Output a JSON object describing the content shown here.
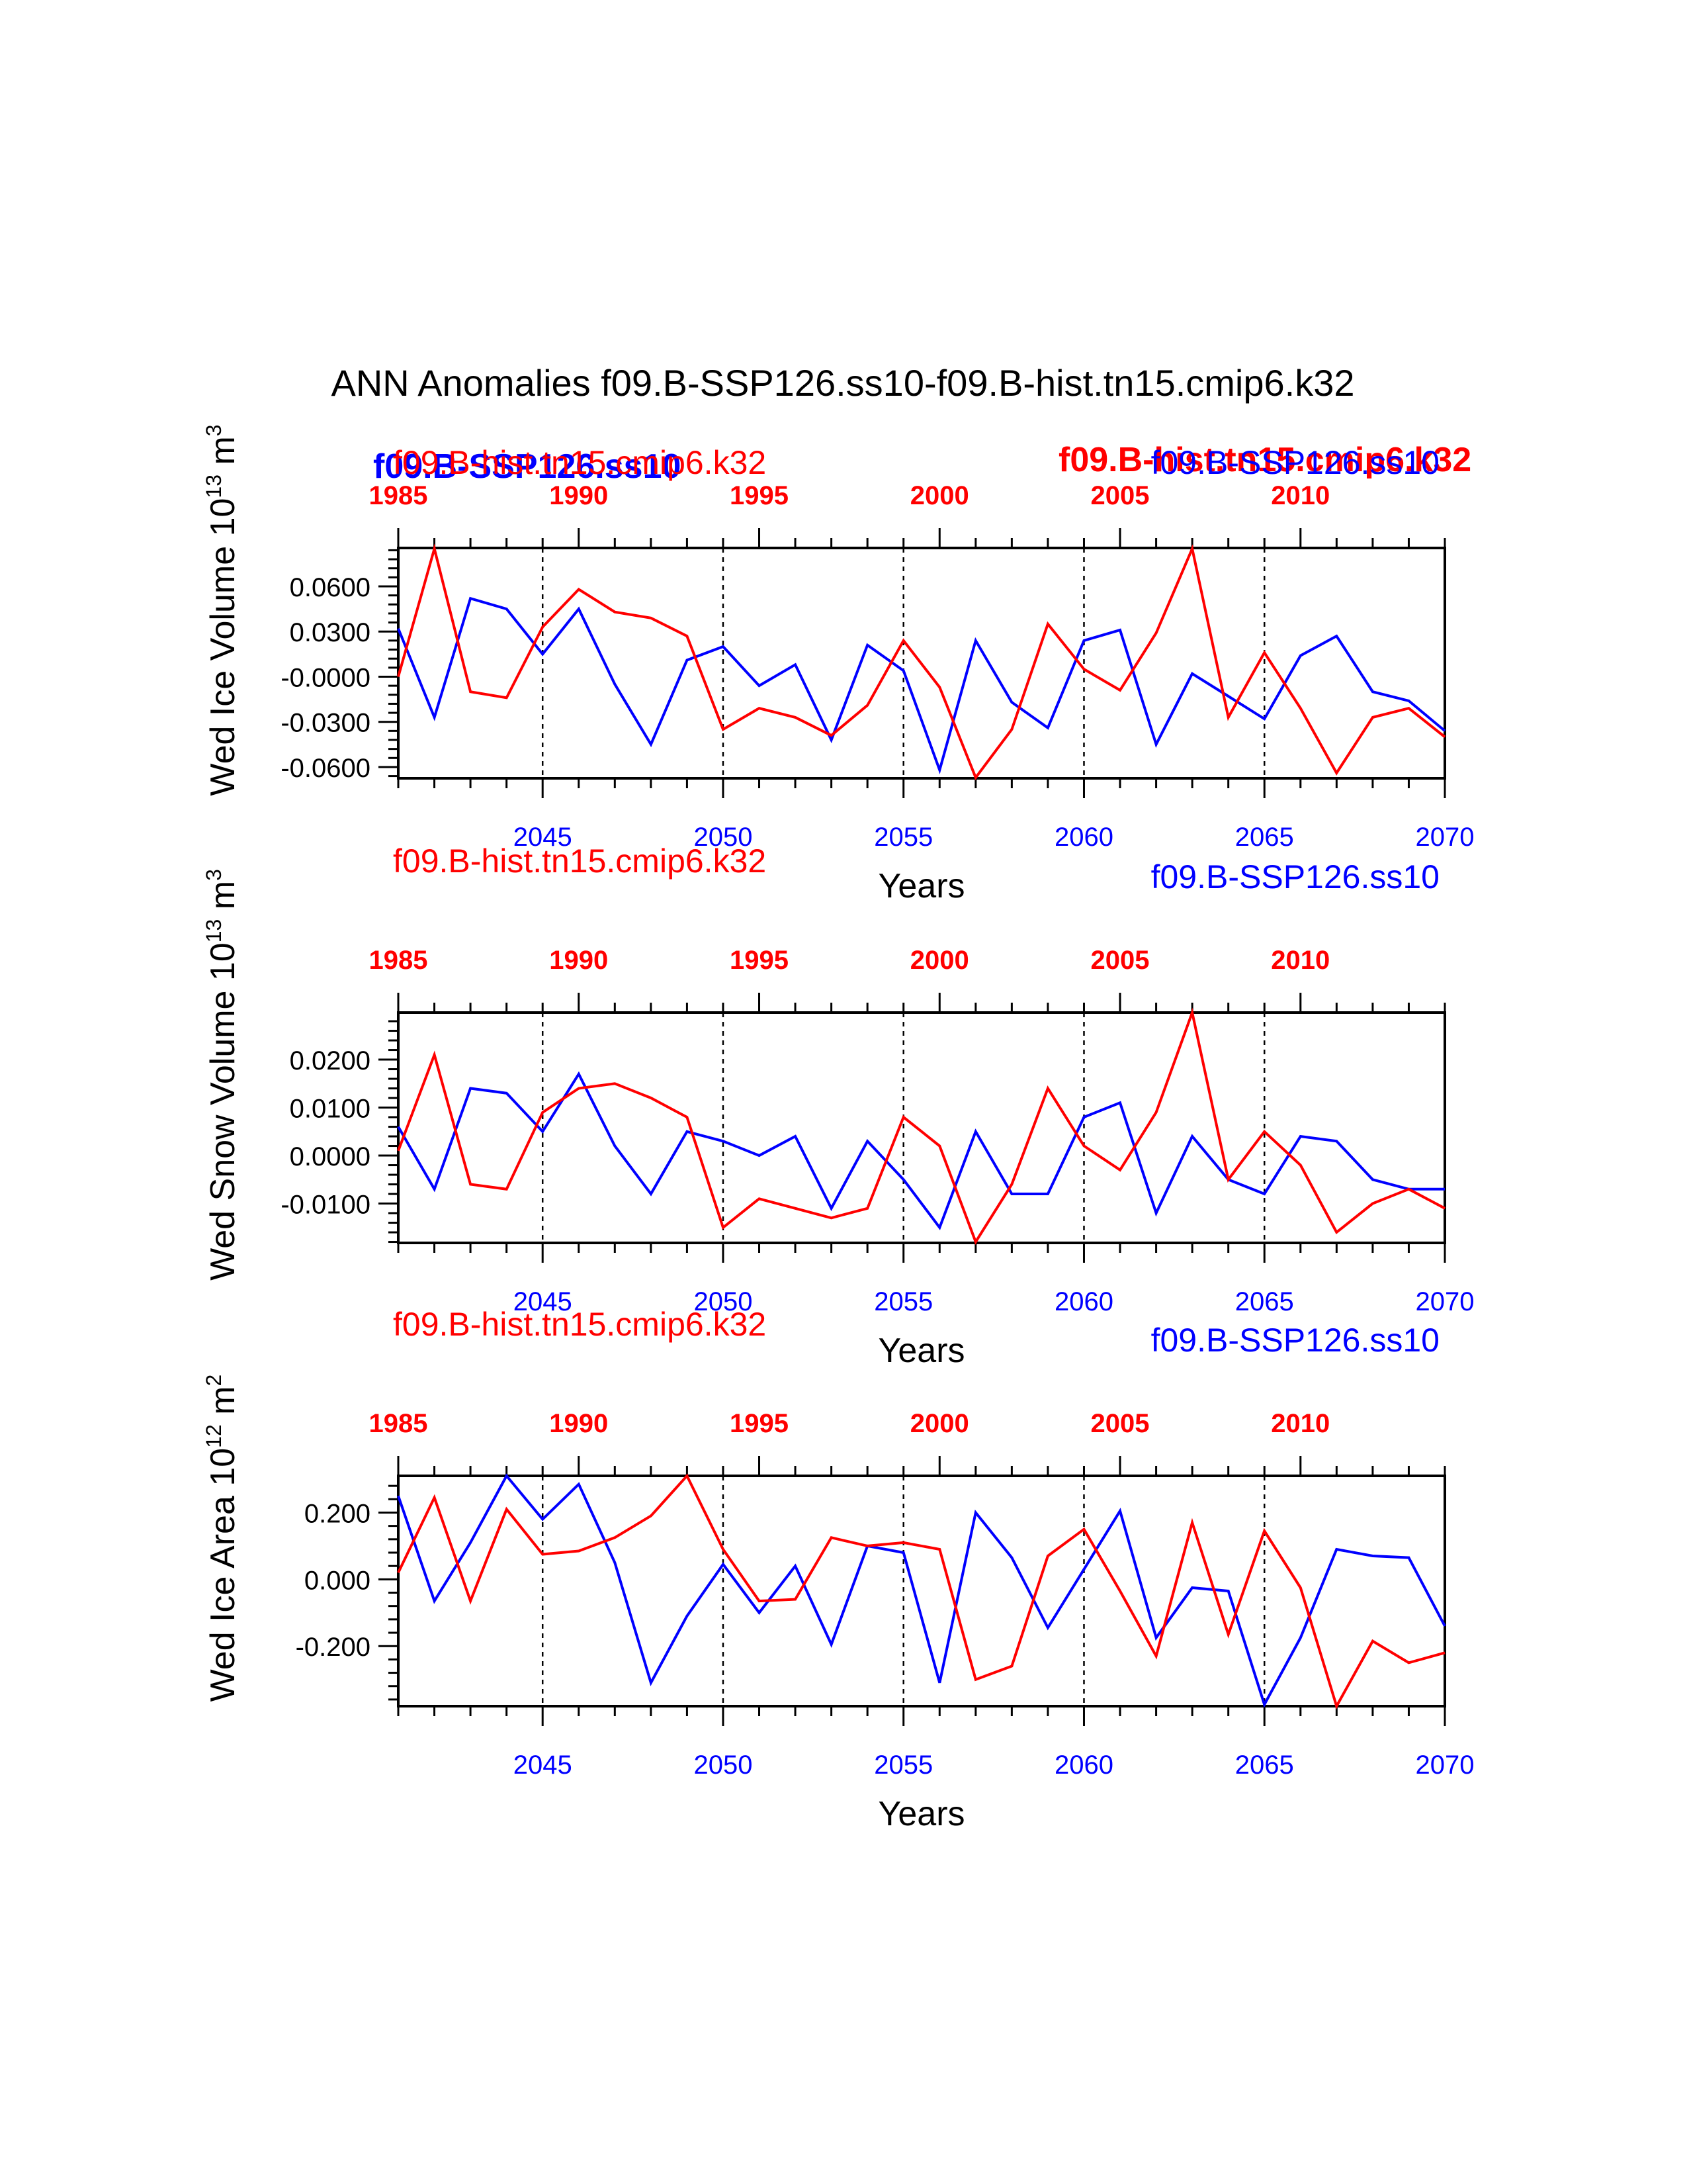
{
  "main_title": "ANN Anomalies f09.B-SSP126.ss10-f09.B-hist.tn15.cmip6.k32",
  "colors": {
    "ssp": "#0000ff",
    "hist": "#ff0000",
    "axis": "#000000"
  },
  "overlap_labels": {
    "ssp_bold_left": "f09.B-SSP126.ss10",
    "hist_bold_right": "f09.B-hist.tn15.cmip6.k32"
  },
  "chart_data": [
    {
      "type": "line",
      "ylabel_main": "Wed Ice Volume 10",
      "ylabel_exp": "13",
      "ylabel_unit": "m",
      "ylabel_unit_exp": "3",
      "xlabel": "Years",
      "hist_label": "f09.B-hist.tn15.cmip6.k32",
      "ssp_label": "f09.B-SSP126.ss10",
      "ylim": [
        -0.0675,
        0.0855
      ],
      "yticks": [
        -0.06,
        -0.03,
        0.0,
        0.03,
        0.06
      ],
      "ytick_labels": [
        "-0.0600",
        "-0.0300",
        "-0.0000",
        "0.0300",
        "0.0600"
      ],
      "ssp_xlim": [
        2041,
        2070
      ],
      "ssp_xticks": [
        2045,
        2050,
        2055,
        2060,
        2065,
        2070
      ],
      "hist_xlim": [
        1985,
        2014
      ],
      "hist_xticks": [
        1985,
        1990,
        1995,
        2000,
        2005,
        2010
      ],
      "gridlines_x": [
        2045,
        2050,
        2055,
        2060,
        2065
      ],
      "series": [
        {
          "name": "f09.B-SSP126.ss10",
          "x_start": 2041,
          "values": [
            0.032,
            -0.027,
            0.052,
            0.045,
            0.015,
            0.045,
            -0.005,
            -0.045,
            0.011,
            0.02,
            -0.006,
            0.008,
            -0.042,
            0.021,
            0.004,
            -0.062,
            0.024,
            -0.017,
            -0.034,
            0.024,
            0.031,
            -0.045,
            0.002,
            -0.013,
            -0.028,
            0.014,
            0.027,
            -0.01,
            -0.016,
            -0.036
          ]
        },
        {
          "name": "f09.B-hist.tn15.cmip6.k32",
          "x_start": 1985,
          "values": [
            0.0,
            0.085,
            -0.01,
            -0.014,
            0.033,
            0.058,
            0.043,
            0.039,
            0.027,
            -0.035,
            -0.021,
            -0.027,
            -0.039,
            -0.019,
            0.024,
            -0.007,
            -0.067,
            -0.035,
            0.035,
            0.005,
            -0.009,
            0.029,
            0.085,
            -0.027,
            0.016,
            -0.021,
            -0.064,
            -0.027,
            -0.021,
            -0.04
          ]
        }
      ]
    },
    {
      "type": "line",
      "ylabel_main": "Wed Snow Volume 10",
      "ylabel_exp": "13",
      "ylabel_unit": "m",
      "ylabel_unit_exp": "3",
      "xlabel": "Years",
      "hist_label": "f09.B-hist.tn15.cmip6.k32",
      "ssp_label": "f09.B-SSP126.ss10",
      "ylim": [
        -0.0182,
        0.0298
      ],
      "yticks": [
        -0.01,
        0.0,
        0.01,
        0.02
      ],
      "ytick_labels": [
        "-0.0100",
        "0.0000",
        "0.0100",
        "0.0200"
      ],
      "ssp_xlim": [
        2041,
        2070
      ],
      "ssp_xticks": [
        2045,
        2050,
        2055,
        2060,
        2065,
        2070
      ],
      "hist_xlim": [
        1985,
        2014
      ],
      "hist_xticks": [
        1985,
        1990,
        1995,
        2000,
        2005,
        2010
      ],
      "gridlines_x": [
        2045,
        2050,
        2055,
        2060,
        2065
      ],
      "series": [
        {
          "name": "f09.B-SSP126.ss10",
          "x_start": 2041,
          "values": [
            0.006,
            -0.007,
            0.014,
            0.013,
            0.005,
            0.017,
            0.002,
            -0.008,
            0.005,
            0.003,
            0.0,
            0.004,
            -0.011,
            0.003,
            -0.005,
            -0.015,
            0.005,
            -0.008,
            -0.008,
            0.008,
            0.011,
            -0.012,
            0.004,
            -0.005,
            -0.008,
            0.004,
            0.003,
            -0.005,
            -0.007,
            -0.007
          ]
        },
        {
          "name": "f09.B-hist.tn15.cmip6.k32",
          "x_start": 1985,
          "values": [
            0.001,
            0.021,
            -0.006,
            -0.007,
            0.009,
            0.014,
            0.015,
            0.012,
            0.008,
            -0.015,
            -0.009,
            -0.011,
            -0.013,
            -0.011,
            0.008,
            0.002,
            -0.018,
            -0.006,
            0.014,
            0.002,
            -0.003,
            0.009,
            0.0298,
            -0.005,
            0.005,
            -0.002,
            -0.016,
            -0.01,
            -0.007,
            -0.011
          ]
        }
      ]
    },
    {
      "type": "line",
      "ylabel_main": "Wed Ice Area 10",
      "ylabel_exp": "12",
      "ylabel_unit": "m",
      "ylabel_unit_exp": "2",
      "xlabel": "Years",
      "hist_label": "f09.B-hist.tn15.cmip6.k32",
      "ssp_label": "f09.B-SSP126.ss10",
      "ylim": [
        -0.38,
        0.31
      ],
      "yticks": [
        -0.2,
        0.0,
        0.2
      ],
      "ytick_labels": [
        "-0.200",
        "0.000",
        "0.200"
      ],
      "ssp_xlim": [
        2041,
        2070
      ],
      "ssp_xticks": [
        2045,
        2050,
        2055,
        2060,
        2065,
        2070
      ],
      "hist_xlim": [
        1985,
        2014
      ],
      "hist_xticks": [
        1985,
        1990,
        1995,
        2000,
        2005,
        2010
      ],
      "gridlines_x": [
        2045,
        2050,
        2055,
        2060,
        2065
      ],
      "series": [
        {
          "name": "f09.B-SSP126.ss10",
          "x_start": 2041,
          "values": [
            0.25,
            -0.065,
            0.11,
            0.31,
            0.18,
            0.285,
            0.05,
            -0.31,
            -0.11,
            0.045,
            -0.1,
            0.04,
            -0.195,
            0.1,
            0.08,
            -0.31,
            0.2,
            0.065,
            -0.145,
            0.03,
            0.205,
            -0.175,
            -0.025,
            -0.035,
            -0.375,
            -0.175,
            0.09,
            0.07,
            0.065,
            -0.14
          ]
        },
        {
          "name": "f09.B-hist.tn15.cmip6.k32",
          "x_start": 1985,
          "values": [
            0.02,
            0.245,
            -0.065,
            0.21,
            0.075,
            0.085,
            0.125,
            0.19,
            0.31,
            0.09,
            -0.065,
            -0.06,
            0.125,
            0.1,
            0.11,
            0.09,
            -0.3,
            -0.26,
            0.07,
            0.15,
            -0.035,
            -0.23,
            0.17,
            -0.165,
            0.145,
            -0.025,
            -0.38,
            -0.185,
            -0.25,
            -0.22
          ]
        }
      ]
    }
  ]
}
